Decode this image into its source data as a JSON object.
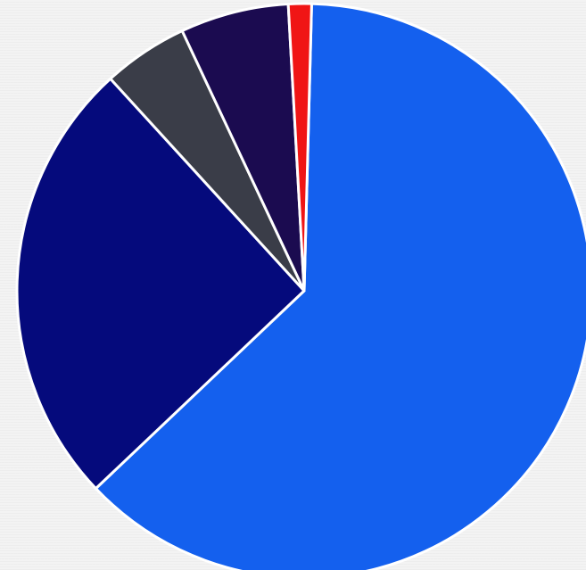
{
  "chart_data": {
    "type": "pie",
    "title": "",
    "categories": [
      "",
      "",
      "",
      "",
      ""
    ],
    "values": [
      62.5,
      25.3,
      4.8,
      6.1,
      1.3
    ],
    "colors": [
      "#1460ee",
      "#050a7c",
      "#3a3d48",
      "#1b0b50",
      "#f01515"
    ],
    "legend": "none",
    "start_angle_deg": 1.5,
    "direction": "clockwise"
  }
}
